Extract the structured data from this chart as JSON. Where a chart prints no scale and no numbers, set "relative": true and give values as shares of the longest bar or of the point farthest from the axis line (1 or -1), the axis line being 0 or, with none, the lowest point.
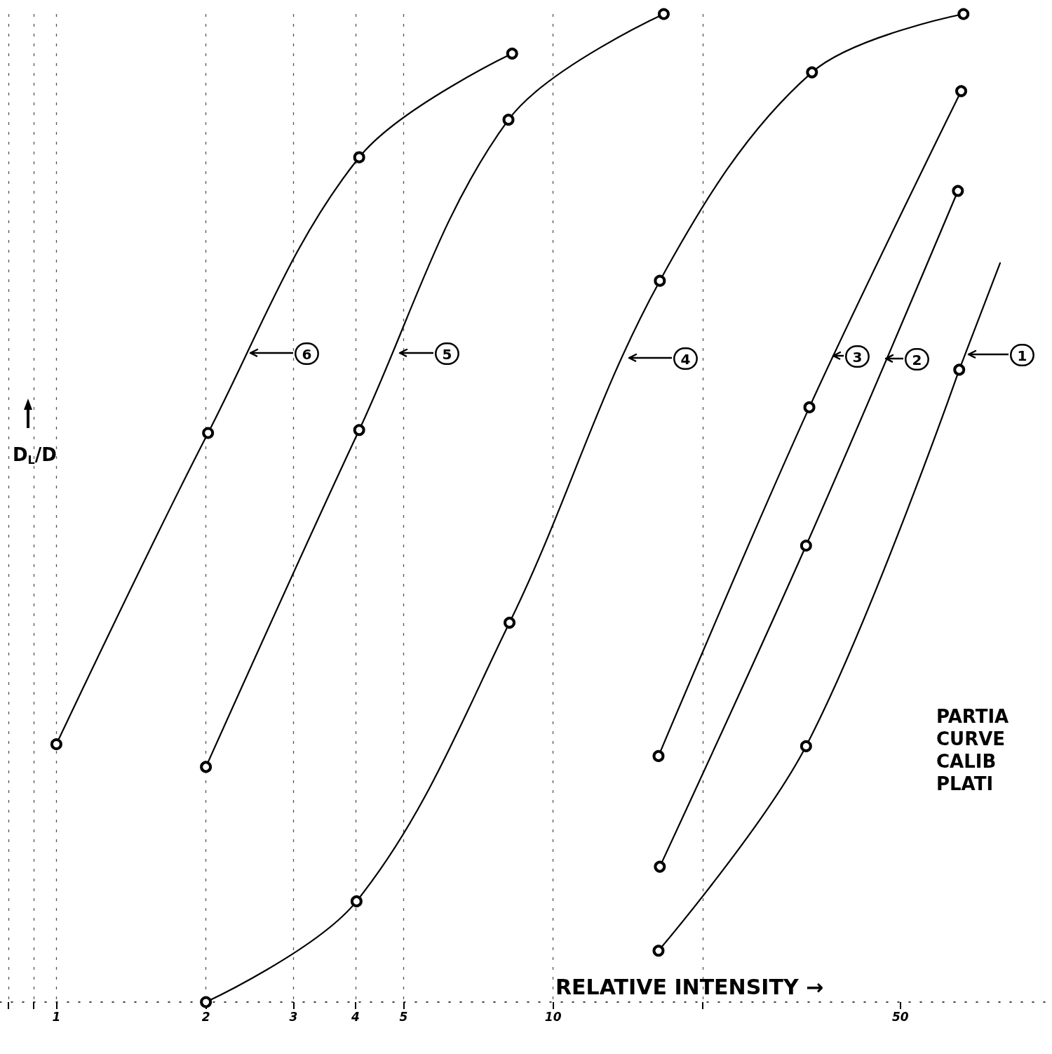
{
  "chart_data": {
    "type": "line",
    "relative": true,
    "log": "x",
    "xlabel": "RELATIVE INTENSITY →",
    "ylabel": "D$_{L}$/D",
    "xlim": [
      0.77,
      101
    ],
    "xticks": [
      {
        "value": 0.8,
        "label": null
      },
      {
        "value": 0.9,
        "label": null
      },
      1,
      2,
      3,
      4,
      5,
      10,
      {
        "value": 20,
        "label": null
      },
      50
    ],
    "grid": "x",
    "marker": "circle",
    "line_style": "solid",
    "series": [
      {
        "color": "#000000",
        "x": [
          1.0,
          2.02,
          4.07,
          8.27
        ],
        "values": [
          0.261,
          0.576,
          0.855,
          0.96
        ]
      },
      {
        "color": "#000000",
        "x": [
          2.0,
          4.07,
          8.13,
          16.7
        ],
        "values": [
          0.238,
          0.579,
          0.893,
          1.0
        ]
      },
      {
        "color": "#000000",
        "x": [
          2.0,
          4.02,
          8.17,
          16.4,
          33.2,
          67.0
        ],
        "values": [
          0,
          0.102,
          0.384,
          0.73,
          0.941,
          1.0
        ]
      },
      {
        "color": "#000000",
        "x": [
          16.3,
          32.8,
          66.3
        ],
        "values": [
          0.249,
          0.602,
          0.922
        ]
      },
      {
        "color": "#000000",
        "x": [
          16.4,
          32.3,
          65.3
        ],
        "values": [
          0.137,
          0.462,
          0.821
        ]
      },
      {
        "color": "#000000",
        "x": [
          16.3,
          32.3,
          65.7
        ],
        "values": [
          0.052,
          0.259,
          0.64
        ]
      },
      {
        "color": "#000000",
        "marker": "none",
        "x": [
          65.7,
          79.4
        ],
        "values": [
          0.64,
          0.748
        ]
      }
    ],
    "annotations": [
      "6",
      "5",
      "4",
      "3",
      "2",
      "1",
      "PARTIA\nCURVE\nCALIB\nPLATI"
    ]
  }
}
